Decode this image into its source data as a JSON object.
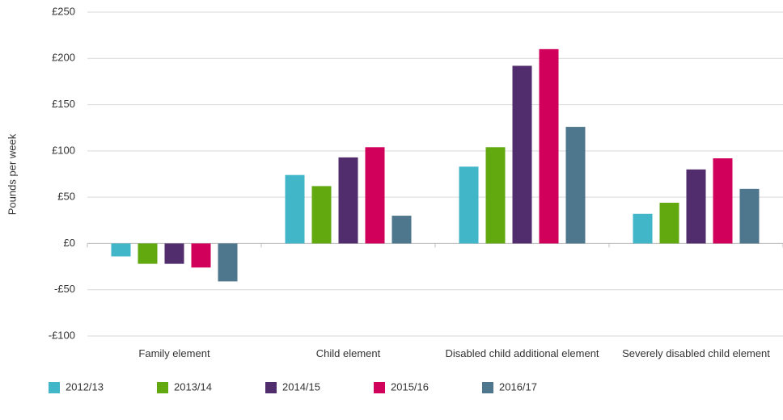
{
  "chart_data": {
    "type": "bar",
    "y_label": "Pounds per week",
    "categories": [
      "Family element",
      "Child element",
      "Disabled child additional element",
      "Severely disabled child element"
    ],
    "series": [
      {
        "name": "2012/13",
        "color": "#41b6c9",
        "values": [
          -14,
          74,
          83,
          32
        ]
      },
      {
        "name": "2013/14",
        "color": "#62a80f",
        "values": [
          -22,
          62,
          104,
          44
        ]
      },
      {
        "name": "2014/15",
        "color": "#522d6d",
        "values": [
          -22,
          93,
          192,
          80
        ]
      },
      {
        "name": "2015/16",
        "color": "#d1005a",
        "values": [
          -26,
          104,
          210,
          92
        ]
      },
      {
        "name": "2016/17",
        "color": "#4e768c",
        "values": [
          -41,
          30,
          126,
          59
        ]
      }
    ],
    "ylim": [
      -100,
      250
    ],
    "yticks": [
      {
        "value": -100,
        "label": "-£100"
      },
      {
        "value": -50,
        "label": "-£50"
      },
      {
        "value": 0,
        "label": "£0"
      },
      {
        "value": 50,
        "label": "£50"
      },
      {
        "value": 100,
        "label": "£100"
      },
      {
        "value": 150,
        "label": "£150"
      },
      {
        "value": 200,
        "label": "£200"
      },
      {
        "value": 250,
        "label": "£250"
      }
    ],
    "grid": true,
    "legend": "bottom"
  }
}
